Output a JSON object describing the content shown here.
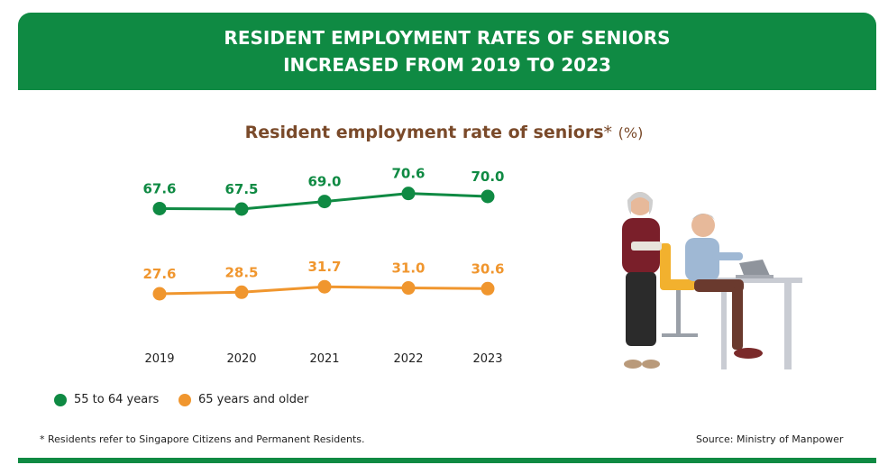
{
  "banner": {
    "line1": "RESIDENT EMPLOYMENT RATES OF SENIORS",
    "line2": "INCREASED FROM 2019 TO 2023"
  },
  "subtitle": {
    "main": "Resident employment rate of seniors",
    "asterisk": "*",
    "unit": "(%)"
  },
  "legend": {
    "series1": "55 to 64 years",
    "series2": "65 years and older"
  },
  "footnote": "* Residents refer to Singapore Citizens and Permanent Residents.",
  "source": "Source: Ministry of Manpower",
  "colors": {
    "green": "#0f8a43",
    "orange": "#f0962e",
    "brown": "#7a4a2a"
  },
  "chart_data": {
    "type": "line",
    "title": "Resident employment rate of seniors* (%)",
    "categories": [
      "2019",
      "2020",
      "2021",
      "2022",
      "2023"
    ],
    "series": [
      {
        "name": "55 to 64 years",
        "values": [
          67.6,
          67.5,
          69.0,
          70.6,
          70.0
        ],
        "color": "#0f8a43"
      },
      {
        "name": "65 years and older",
        "values": [
          27.6,
          28.5,
          31.7,
          31.0,
          30.6
        ],
        "color": "#f0962e"
      }
    ],
    "grid": false,
    "legend_position": "bottom-left"
  }
}
